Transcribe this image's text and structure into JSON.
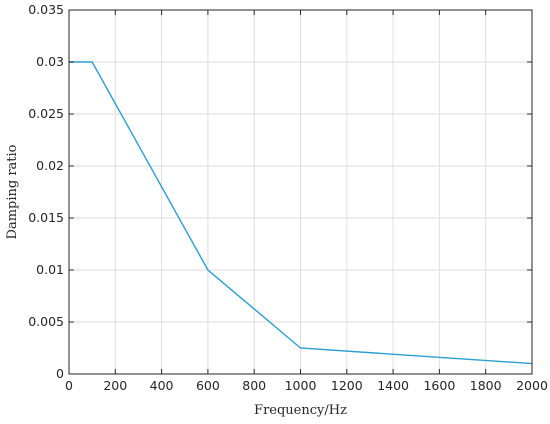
{
  "chart_data": {
    "type": "line",
    "title": "",
    "xlabel": "Frequency/Hz",
    "ylabel": "Damping ratio",
    "xlim": [
      0,
      2000
    ],
    "ylim": [
      0,
      0.035
    ],
    "grid": true,
    "x_ticks": [
      0,
      200,
      400,
      600,
      800,
      1000,
      1200,
      1400,
      1600,
      1800,
      2000
    ],
    "x_tick_labels": [
      "0",
      "200",
      "400",
      "600",
      "800",
      "1000",
      "1200",
      "1400",
      "1600",
      "1800",
      "2000"
    ],
    "y_ticks": [
      0,
      0.005,
      0.01,
      0.015,
      0.02,
      0.025,
      0.03,
      0.035
    ],
    "y_tick_labels": [
      "0",
      "0.005",
      "0.01",
      "0.015",
      "0.02",
      "0.025",
      "0.03",
      "0.035"
    ],
    "series": [
      {
        "color": "#2a9fd0",
        "x": [
          0,
          100,
          600,
          1000,
          2000
        ],
        "y": [
          0.03,
          0.03,
          0.01,
          0.0025,
          0.001
        ]
      }
    ]
  }
}
